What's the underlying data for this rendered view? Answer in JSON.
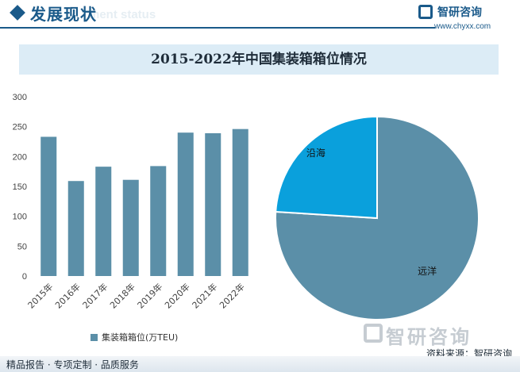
{
  "header": {
    "section_title": "发展现状",
    "section_subtitle": "ment status",
    "brand_name": "智研咨询",
    "brand_url": "www.chyxx.com"
  },
  "chart_title": "2015-2022年中国集装箱箱位情况",
  "chart_data": [
    {
      "type": "bar",
      "categories": [
        "2015年",
        "2016年",
        "2017年",
        "2018年",
        "2019年",
        "2020年",
        "2021年",
        "2022年"
      ],
      "series": [
        {
          "name": "集装箱箱位(万TEU)",
          "values": [
            233,
            159,
            183,
            161,
            184,
            240,
            239,
            246
          ]
        }
      ],
      "yticks": [
        "0",
        "50",
        "100",
        "150",
        "200",
        "250",
        "300"
      ],
      "ylim": [
        0,
        300
      ],
      "grid": false,
      "legend_position": "bottom",
      "color": "#5b8fa8"
    },
    {
      "type": "pie",
      "labels": [
        "远洋",
        "沿海"
      ],
      "values": [
        76,
        24
      ],
      "colors": [
        "#5b8fa8",
        "#0aa0dc"
      ]
    }
  ],
  "footer": {
    "left_text": "精品报告 · 专项定制 · 品质服务",
    "source": "资料来源：智研咨询",
    "brand": "智研咨询"
  }
}
